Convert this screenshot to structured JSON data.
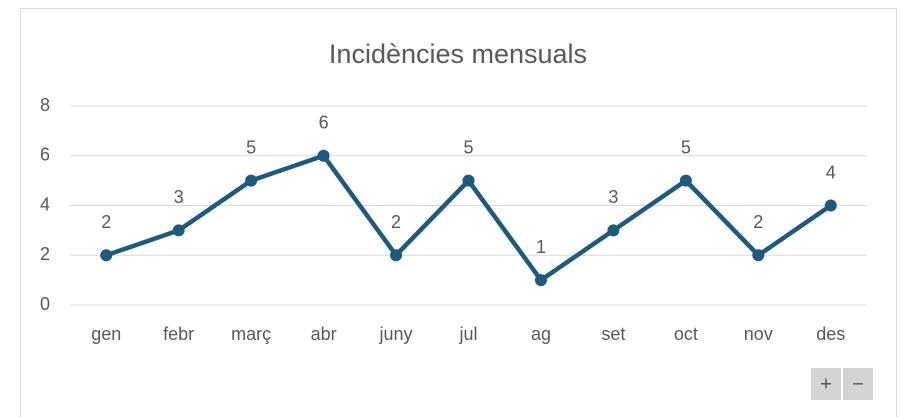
{
  "chart_data": {
    "type": "line",
    "title": "Incidències mensuals",
    "categories": [
      "gen",
      "febr",
      "març",
      "abr",
      "juny",
      "jul",
      "ag",
      "set",
      "oct",
      "nov",
      "des"
    ],
    "values": [
      2,
      3,
      5,
      6,
      2,
      5,
      1,
      3,
      5,
      2,
      4
    ],
    "color": "#1d5b7e",
    "ylim": [
      0,
      8
    ],
    "yticks": [
      0,
      2,
      4,
      6,
      8
    ],
    "grid": true
  },
  "controls": {
    "zoom_in": "+",
    "zoom_out": "−"
  }
}
